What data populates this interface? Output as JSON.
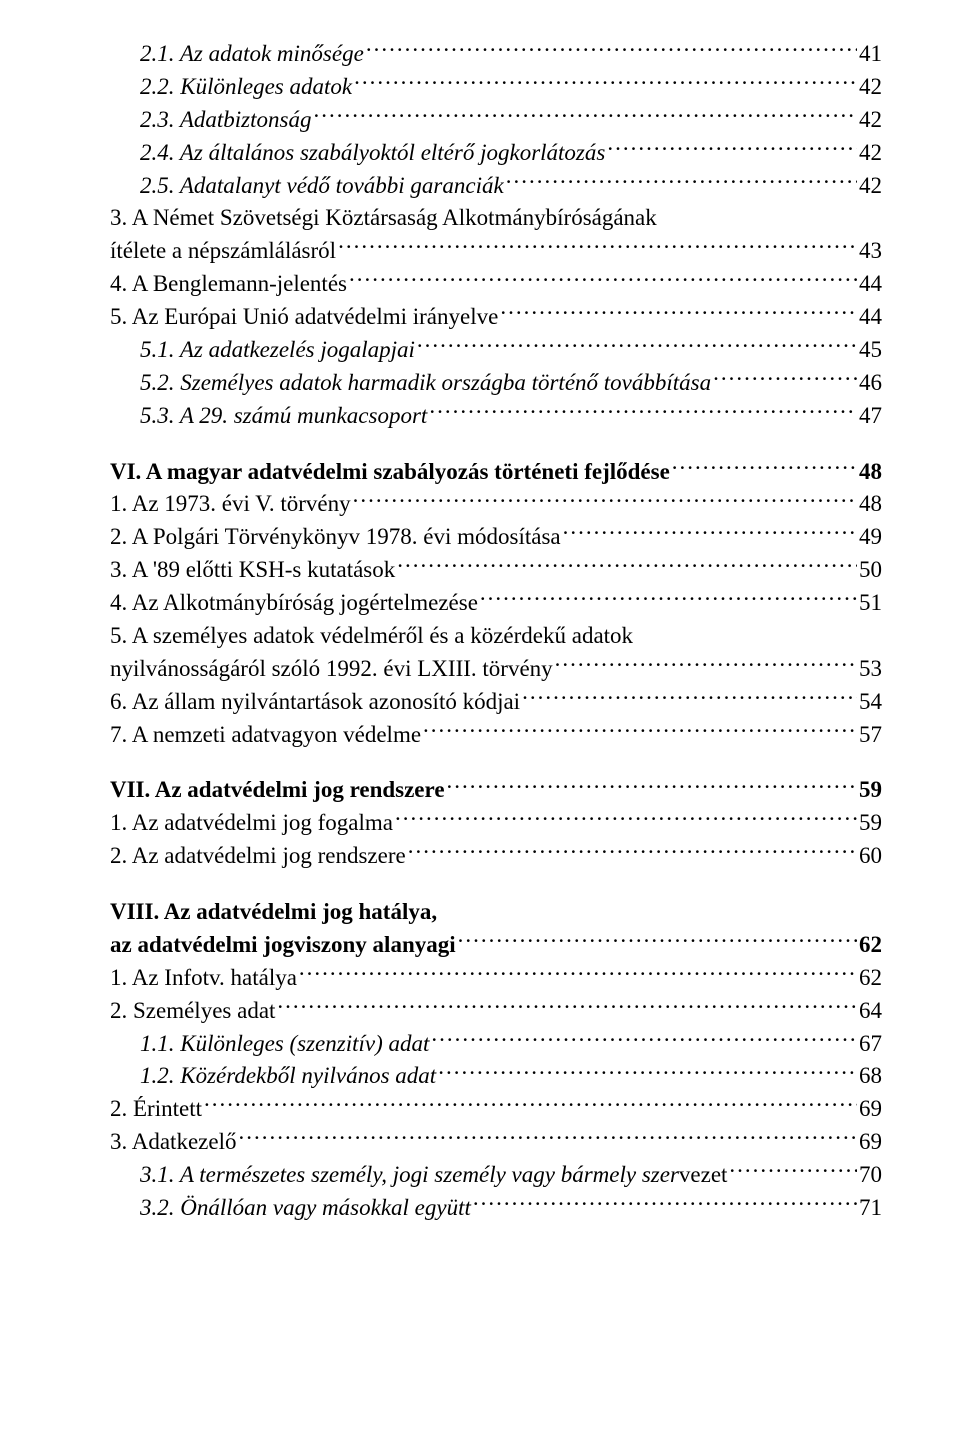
{
  "textColor": "#000000",
  "bgColor": "#ffffff",
  "fontSizePx": 23,
  "lines": [
    {
      "label": "2.1. Az adatok minősége",
      "page": "41",
      "indent": 1,
      "style": "italic"
    },
    {
      "label": "2.2. Különleges adatok",
      "page": "42",
      "indent": 1,
      "style": "italic"
    },
    {
      "label": "2.3. Adatbiztonság",
      "page": "42",
      "indent": 1,
      "style": "italic"
    },
    {
      "label": "2.4. Az általános szabályoktól eltérő jogkorlátozás",
      "page": "42",
      "indent": 1,
      "style": "italic"
    },
    {
      "label": "2.5. Adatalanyt védő további garanciák",
      "page": "42",
      "indent": 1,
      "style": "italic"
    },
    {
      "label": "3. A Német Szövetségi Köztársaság Alkotmánybíróságának",
      "page": "",
      "indent": 0,
      "style": "normal",
      "noDots": true
    },
    {
      "label": "ítélete a népszámlálásról",
      "page": "43",
      "indent": 0,
      "style": "normal"
    },
    {
      "label": "4. A Benglemann-jelentés",
      "page": "44",
      "indent": 0,
      "style": "normal"
    },
    {
      "label": "5. Az Európai Unió adatvédelmi irányelve",
      "page": "44",
      "indent": 0,
      "style": "normal"
    },
    {
      "label": "5.1. Az adatkezelés jogalapjai",
      "page": "45",
      "indent": 1,
      "style": "italic"
    },
    {
      "label": "5.2. Személyes adatok harmadik országba történő továbbítása",
      "page": "46",
      "indent": 1,
      "style": "italic"
    },
    {
      "label": "5.3. A 29. számú munkacsoport",
      "page": "47",
      "indent": 1,
      "style": "italic"
    },
    {
      "gap": true
    },
    {
      "label": "VI. A magyar adatvédelmi szabályozás történeti fejlődése",
      "page": "48",
      "indent": 0,
      "style": "bold"
    },
    {
      "label": "1. Az 1973. évi V. törvény",
      "page": "48",
      "indent": 0,
      "style": "normal"
    },
    {
      "label": "2. A Polgári Törvénykönyv 1978. évi módosítása",
      "page": "49",
      "indent": 0,
      "style": "normal"
    },
    {
      "label": "3. A '89 előtti KSH-s kutatások",
      "page": "50",
      "indent": 0,
      "style": "normal"
    },
    {
      "label": "4. Az Alkotmánybíróság jogértelmezése",
      "page": "51",
      "indent": 0,
      "style": "normal"
    },
    {
      "label": "5. A személyes adatok védelméről és a közérdekű adatok",
      "page": "",
      "indent": 0,
      "style": "normal",
      "noDots": true
    },
    {
      "label": "nyilvánosságáról szóló 1992. évi LXIII. törvény",
      "page": "53",
      "indent": 0,
      "style": "normal"
    },
    {
      "label": "6. Az állam nyilvántartások azonosító kódjai",
      "page": "54",
      "indent": 0,
      "style": "normal"
    },
    {
      "label": "7. A nemzeti adatvagyon védelme",
      "page": "57",
      "indent": 0,
      "style": "normal"
    },
    {
      "gap": true
    },
    {
      "label": "VII. Az adatvédelmi jog rendszere",
      "page": "59",
      "indent": 0,
      "style": "bold"
    },
    {
      "label": "1. Az adatvédelmi jog fogalma",
      "page": "59",
      "indent": 0,
      "style": "normal"
    },
    {
      "label": "2. Az adatvédelmi jog rendszere",
      "page": "60",
      "indent": 0,
      "style": "normal"
    },
    {
      "gap": true
    },
    {
      "label": "VIII. Az adatvédelmi jog hatálya,",
      "page": "",
      "indent": 0,
      "style": "bold",
      "noDots": true
    },
    {
      "label": "az adatvédelmi jogviszony alanyagi",
      "page": "62",
      "indent": 0,
      "style": "bold"
    },
    {
      "label": "1. Az Infotv. hatálya",
      "page": "62",
      "indent": 0,
      "style": "normal"
    },
    {
      "label": "2. Személyes adat",
      "page": "64",
      "indent": 0,
      "style": "normal"
    },
    {
      "label": "1.1. Különleges (szenzitív) adat",
      "page": "67",
      "indent": 1,
      "style": "italic"
    },
    {
      "label": "1.2. Közérdekből nyilvános adat",
      "page": "68",
      "indent": 1,
      "style": "italic"
    },
    {
      "label": "2. Érintett",
      "page": "69",
      "indent": 0,
      "style": "normal"
    },
    {
      "label": "3. Adatkezelő",
      "page": "69",
      "indent": 0,
      "style": "normal"
    },
    {
      "label": "3.1. A természetes személy, jogi személy vagy bármely szer",
      "labelTail": "vezet",
      "page": "70",
      "indent": 1,
      "style": "italic"
    },
    {
      "label": "3.2. Önállóan vagy másokkal együtt",
      "page": "71",
      "indent": 1,
      "style": "italic"
    }
  ]
}
